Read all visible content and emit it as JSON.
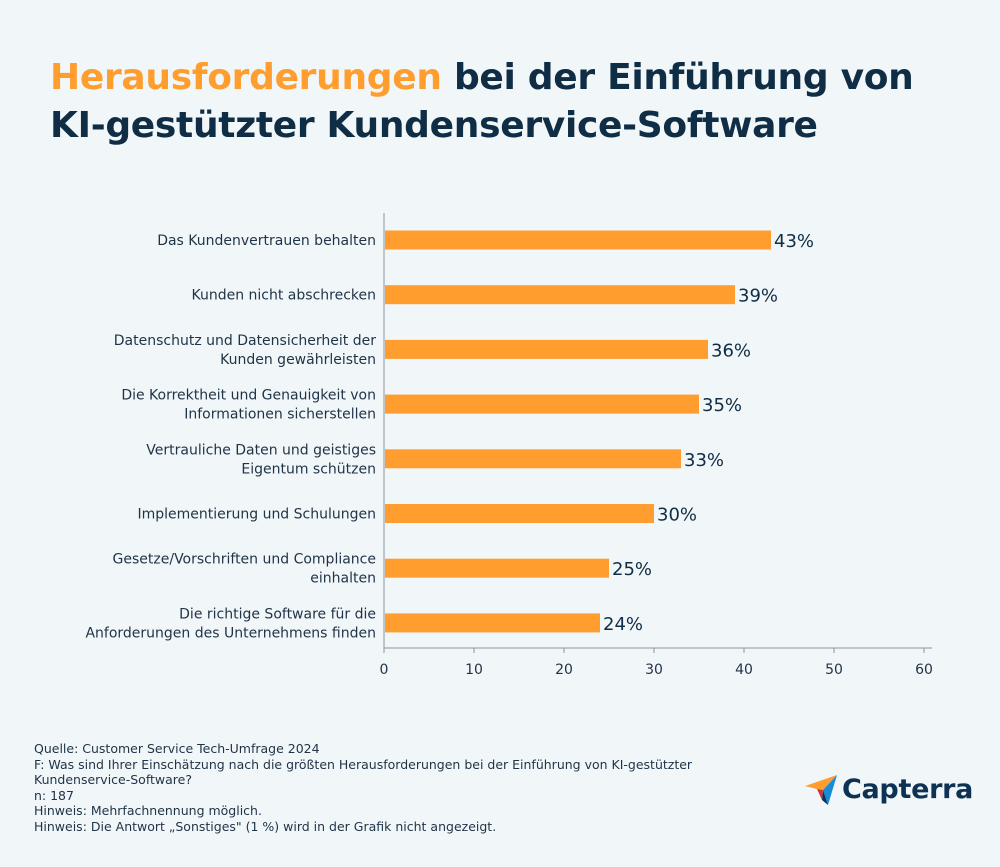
{
  "title": {
    "highlight": "Herausforderungen",
    "rest_line1": " bei der Einführung von",
    "line2": "KI-gestützter Kundenservice-Software"
  },
  "colors": {
    "bar": "#ff9d2e",
    "title_accent": "#ff9d2e",
    "title_text": "#0f2d45",
    "text": "#1f3347",
    "background": "#f1f6f8"
  },
  "chart_data": {
    "type": "bar",
    "orientation": "horizontal",
    "categories": [
      [
        "Das Kundenvertrauen behalten"
      ],
      [
        "Kunden nicht abschrecken"
      ],
      [
        "Datenschutz und Datensicherheit der",
        "Kunden gewährleisten"
      ],
      [
        "Die Korrektheit und Genauigkeit von",
        "Informationen sicherstellen"
      ],
      [
        "Vertrauliche Daten und geistiges",
        "Eigentum schützen"
      ],
      [
        "Implementierung und Schulungen"
      ],
      [
        "Gesetze/Vorschriften und Compliance",
        "einhalten"
      ],
      [
        "Die richtige Software für die",
        "Anforderungen des Unternehmens finden"
      ]
    ],
    "values": [
      43,
      39,
      36,
      35,
      33,
      30,
      25,
      24
    ],
    "value_labels": [
      "43%",
      "39%",
      "36%",
      "35%",
      "33%",
      "30%",
      "25%",
      "24%"
    ],
    "xlim": [
      0,
      60
    ],
    "xticks": [
      0,
      10,
      20,
      30,
      40,
      50,
      60
    ],
    "grid": false,
    "legend": "none"
  },
  "footer": {
    "lines": [
      "Quelle: Customer Service Tech-Umfrage 2024",
      "F: Was sind Ihrer Einschätzung nach die größten Herausforderungen bei der Einführung von KI-gestützter",
      "Kundenservice-Software?",
      "n: 187",
      "Hinweis: Mehrfachnennung möglich.",
      "Hinweis: Die Antwort „Sonstiges\" (1 %) wird in der Grafik nicht angezeigt."
    ]
  },
  "logo": {
    "text": "Capterra",
    "icon": "capterra-arrow-icon"
  }
}
